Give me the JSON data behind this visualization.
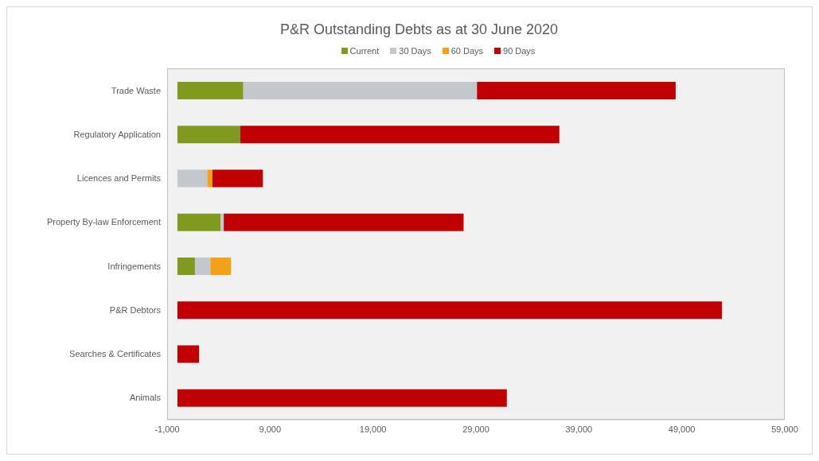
{
  "chart_data": {
    "type": "bar",
    "orientation": "horizontal",
    "stacked": true,
    "title": "P&R Outstanding Debts as at 30 June 2020",
    "categories": [
      "Trade Waste",
      "Regulatory Application",
      "Licences and Permits",
      "Property By-law Enforcement",
      "Infringements",
      "P&R Debtors",
      "Searches & Certificates",
      "Animals"
    ],
    "series": [
      {
        "name": "Current",
        "color": "#7f9a1e",
        "values": [
          6400,
          6100,
          null,
          4200,
          1700,
          null,
          null,
          null
        ]
      },
      {
        "name": "30 Days",
        "color": "#c4c8cc",
        "values": [
          22700,
          null,
          2900,
          300,
          1500,
          null,
          null,
          null
        ]
      },
      {
        "name": "60 Days",
        "color": "#f5a01a",
        "values": [
          null,
          null,
          500,
          null,
          2000,
          null,
          null,
          null
        ]
      },
      {
        "name": "90 Days",
        "color": "#c00000",
        "values": [
          19300,
          31000,
          4900,
          23300,
          null,
          52900,
          2100,
          32000
        ]
      }
    ],
    "xlim": [
      -1000,
      59000
    ],
    "xticks": [
      {
        "value": -1000,
        "label": "-1,000"
      },
      {
        "value": 9000,
        "label": "9,000"
      },
      {
        "value": 19000,
        "label": "19,000"
      },
      {
        "value": 29000,
        "label": "29,000"
      },
      {
        "value": 39000,
        "label": "39,000"
      },
      {
        "value": 49000,
        "label": "49,000"
      },
      {
        "value": 59000,
        "label": "59,000"
      }
    ],
    "legend": "top"
  }
}
